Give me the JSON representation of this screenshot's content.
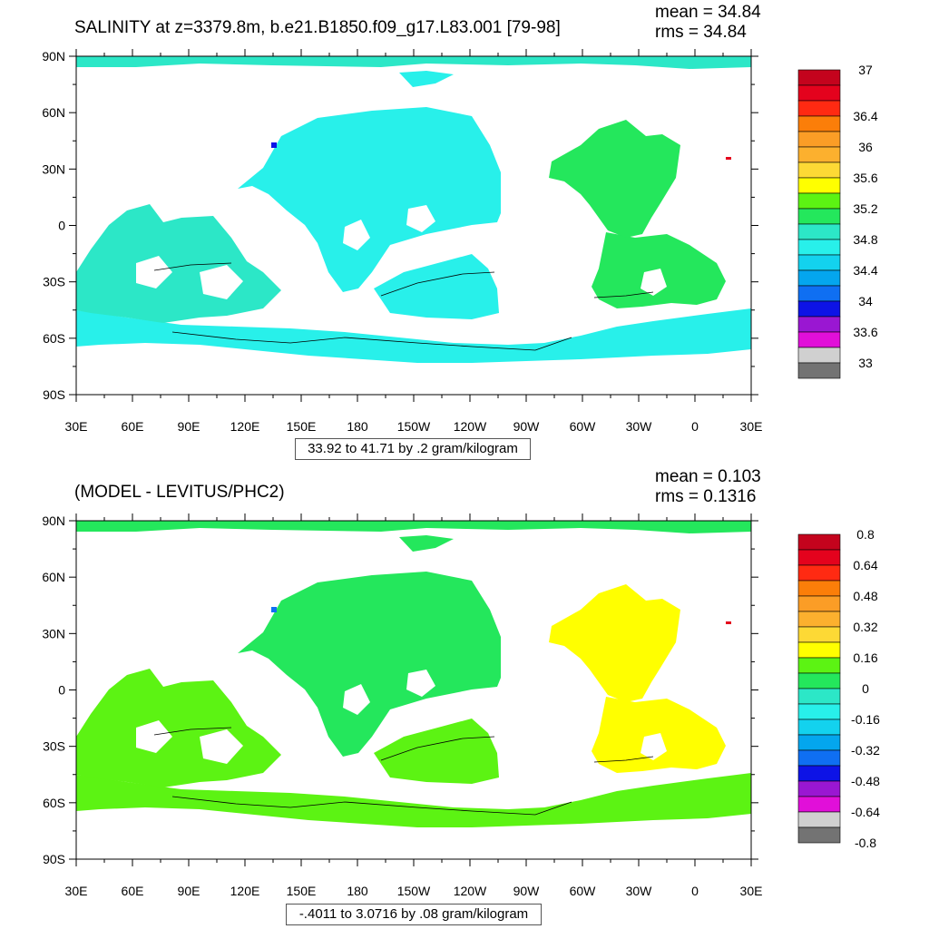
{
  "colors": {
    "land": "#ffffff",
    "frame": "#000000",
    "palette": [
      "#737373",
      "#d0d0d0",
      "#e10fd9",
      "#9a17d2",
      "#0d13e6",
      "#0f6ff2",
      "#04a6ee",
      "#13d2ee",
      "#28f0ea",
      "#2ce7c7",
      "#24e75c",
      "#5cf313",
      "#ffff00",
      "#fdd935",
      "#fcb02e",
      "#fb9d26",
      "#fb7e09",
      "#ff2a12",
      "#e4021d",
      "#c4031d"
    ]
  },
  "axes": {
    "lat_labels": [
      "90N",
      "60N",
      "30N",
      "0",
      "30S",
      "60S",
      "90S"
    ],
    "lon_labels": [
      "30E",
      "60E",
      "90E",
      "120E",
      "150E",
      "180",
      "150W",
      "120W",
      "90W",
      "60W",
      "30W",
      "0",
      "30E"
    ]
  },
  "panels": [
    {
      "title": "SALINITY at z=3379.8m, b.e21.B1850.f09_g17.L83.001 [79-98]",
      "mean": "mean = 34.84",
      "rms": "rms = 34.84",
      "info": "33.92 to 41.71 by .2 gram/kilogram",
      "colorbar_labels": [
        "37",
        "36.4",
        "36",
        "35.6",
        "35.2",
        "34.8",
        "34.4",
        "34",
        "33.6",
        "33"
      ],
      "colorbar_label_boxes": [
        0,
        3,
        5,
        7,
        9,
        11,
        13,
        15,
        17,
        19
      ],
      "regions": {
        "pacific": "#28f0ea",
        "north_pacific_deep": "#28f0ea",
        "south_pacific": "#28f0ea",
        "southern_ocean": "#28f0ea",
        "indian": "#2ce7c7",
        "atlantic_north": "#24e75c",
        "atlantic_south": "#24e75c",
        "arctic": "#2ce7c7",
        "spot_a": "#0d13e6",
        "spot_b": "#e4021d"
      }
    },
    {
      "title": "(MODEL - LEVITUS/PHC2)",
      "mean": "mean = 0.103",
      "rms": "rms = 0.1316",
      "info": "-.4011 to 3.0716 by .08 gram/kilogram",
      "colorbar_labels": [
        "0.8",
        "0.64",
        "0.48",
        "0.32",
        "0.16",
        "0",
        "-0.16",
        "-0.32",
        "-0.48",
        "-0.64",
        "-0.8"
      ],
      "colorbar_label_boxes": [
        0,
        2,
        4,
        6,
        8,
        10,
        12,
        14,
        16,
        18,
        20
      ],
      "regions": {
        "pacific": "#24e75c",
        "north_pacific_deep": "#24e75c",
        "south_pacific": "#5cf313",
        "southern_ocean": "#5cf313",
        "indian": "#5cf313",
        "atlantic_north": "#ffff00",
        "atlantic_south": "#ffff00",
        "arctic": "#24e75c",
        "spot_a": "#0f6ff2",
        "spot_b": "#e4021d"
      }
    }
  ]
}
